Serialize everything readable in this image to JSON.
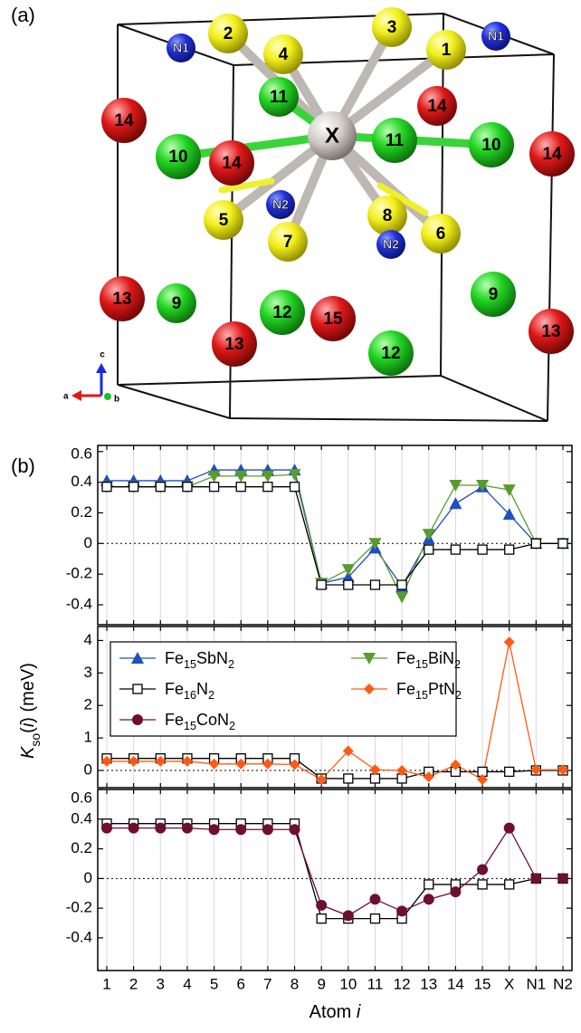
{
  "panel_labels": [
    "(a)",
    "(b)"
  ],
  "structure": {
    "atoms": [
      "2",
      "4",
      "3",
      "1",
      "N1",
      "N1",
      "11",
      "14",
      "14",
      "10",
      "14",
      "11",
      "10",
      "14",
      "X",
      "5",
      "N2",
      "7",
      "8",
      "N2",
      "6",
      "13",
      "9",
      "12",
      "15",
      "13",
      "9",
      "13",
      "12"
    ],
    "axes": [
      "a",
      "b",
      "c"
    ]
  },
  "chart_data": [
    {
      "type": "line",
      "ylim": [
        -0.53,
        0.64
      ],
      "yticks": [
        -0.4,
        -0.2,
        0,
        0.2,
        0.4,
        0.6
      ],
      "series": [
        {
          "name": "Fe15SbN2",
          "color": "#1f4fc0",
          "marker": "triangle-up",
          "values": [
            0.41,
            0.41,
            0.41,
            0.41,
            0.48,
            0.48,
            0.48,
            0.48,
            -0.26,
            -0.22,
            -0.03,
            -0.28,
            0.03,
            0.26,
            0.37,
            0.19,
            0,
            0
          ]
        },
        {
          "name": "Fe15BiN2",
          "color": "#5a9b2c",
          "marker": "triangle-down",
          "values": [
            0.37,
            0.37,
            0.37,
            0.37,
            0.44,
            0.44,
            0.44,
            0.45,
            -0.26,
            -0.17,
            0,
            -0.35,
            0.06,
            0.38,
            0.38,
            0.35,
            0,
            0
          ]
        },
        {
          "color": "#000000",
          "marker": "square-open",
          "values": [
            0.37,
            0.37,
            0.37,
            0.37,
            0.37,
            0.37,
            0.37,
            0.37,
            -0.27,
            -0.27,
            -0.27,
            -0.27,
            -0.04,
            -0.04,
            -0.04,
            -0.04,
            0,
            0
          ]
        }
      ]
    },
    {
      "type": "line",
      "ylim": [
        -0.53,
        4.43
      ],
      "yticks": [
        0,
        1,
        2,
        3,
        4
      ],
      "ylabel": "Kso(i) (meV)",
      "series": [
        {
          "name": "Fe16N2",
          "color": "#000000",
          "marker": "square-open",
          "values": [
            0.37,
            0.37,
            0.37,
            0.37,
            0.37,
            0.37,
            0.37,
            0.37,
            -0.25,
            -0.25,
            -0.25,
            -0.25,
            -0.04,
            -0.04,
            -0.04,
            -0.04,
            0,
            0
          ]
        },
        {
          "name": "Fe15PtN2",
          "color": "#ff5a14",
          "marker": "diamond",
          "values": [
            0.28,
            0.28,
            0.28,
            0.28,
            0.2,
            0.2,
            0.2,
            0.18,
            -0.28,
            0.6,
            0.02,
            0,
            -0.2,
            0.17,
            -0.28,
            3.95,
            0.02,
            0.02
          ]
        }
      ]
    },
    {
      "type": "line",
      "ylim": [
        -0.62,
        0.6
      ],
      "yticks": [
        -0.4,
        -0.2,
        0,
        0.2,
        0.4,
        0.6
      ],
      "xlabel": "Atom i",
      "categories": [
        "1",
        "2",
        "3",
        "4",
        "5",
        "6",
        "7",
        "8",
        "9",
        "10",
        "11",
        "12",
        "13",
        "14",
        "15",
        "X",
        "N1",
        "N2"
      ],
      "series": [
        {
          "color": "#000000",
          "marker": "square-open",
          "values": [
            0.37,
            0.37,
            0.37,
            0.37,
            0.37,
            0.37,
            0.37,
            0.37,
            -0.27,
            -0.27,
            -0.27,
            -0.27,
            -0.04,
            -0.04,
            -0.04,
            -0.04,
            0,
            0
          ]
        },
        {
          "name": "Fe15CoN2",
          "color": "#6e0f2e",
          "marker": "circle",
          "values": [
            0.34,
            0.34,
            0.34,
            0.34,
            0.33,
            0.33,
            0.33,
            0.33,
            -0.18,
            -0.25,
            -0.14,
            -0.22,
            -0.14,
            -0.09,
            0.06,
            0.34,
            0,
            0
          ]
        }
      ]
    }
  ]
}
